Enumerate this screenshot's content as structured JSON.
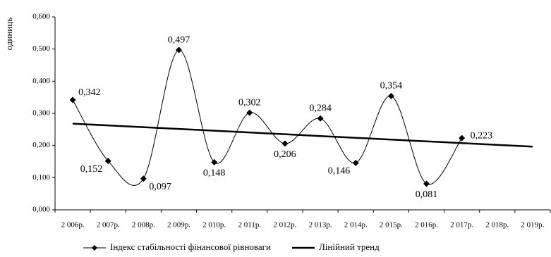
{
  "chart_data": {
    "type": "line",
    "y_label": "одиниць",
    "categories": [
      "2 006р.",
      "2 007р.",
      "2 008р.",
      "2 009р.",
      "2 010р.",
      "2 011р.",
      "2 012р.",
      "2 013р.",
      "2 014р.",
      "2 015р.",
      "2 016р.",
      "2 017р.",
      "2 018р.",
      "2 019р."
    ],
    "series": [
      {
        "name": "Індекс стабільності фінансової рівноваги",
        "color": "#000000",
        "smooth": true,
        "marker": "diamond",
        "values": [
          0.342,
          0.152,
          0.097,
          0.497,
          0.148,
          0.302,
          0.206,
          0.284,
          0.146,
          0.354,
          0.081,
          0.223,
          null,
          null
        ],
        "value_labels": [
          "0,342",
          "0,152",
          "0,097",
          "0,497",
          "0,148",
          "0,302",
          "0,206",
          "0,284",
          "0,146",
          "0,354",
          "0,081",
          "0,223",
          null,
          null
        ]
      },
      {
        "name": "Лінійний тренд",
        "color": "#000000",
        "smooth": false,
        "marker": null,
        "values": [
          0.268,
          0.2625,
          0.257,
          0.2515,
          0.246,
          0.2405,
          0.235,
          0.2295,
          0.224,
          0.2185,
          0.213,
          0.2075,
          0.202,
          0.1965
        ]
      }
    ],
    "ylim": [
      0,
      0.6
    ],
    "yticks": [
      {
        "value": 0,
        "label": "0,000"
      },
      {
        "value": 0.1,
        "label": "0,100"
      },
      {
        "value": 0.2,
        "label": "0,200"
      },
      {
        "value": 0.3,
        "label": "0,300"
      },
      {
        "value": 0.4,
        "label": "0,400"
      },
      {
        "value": 0.5,
        "label": "0,500"
      },
      {
        "value": 0.6,
        "label": "0,600"
      }
    ],
    "grid": false,
    "legend": "bottom"
  }
}
